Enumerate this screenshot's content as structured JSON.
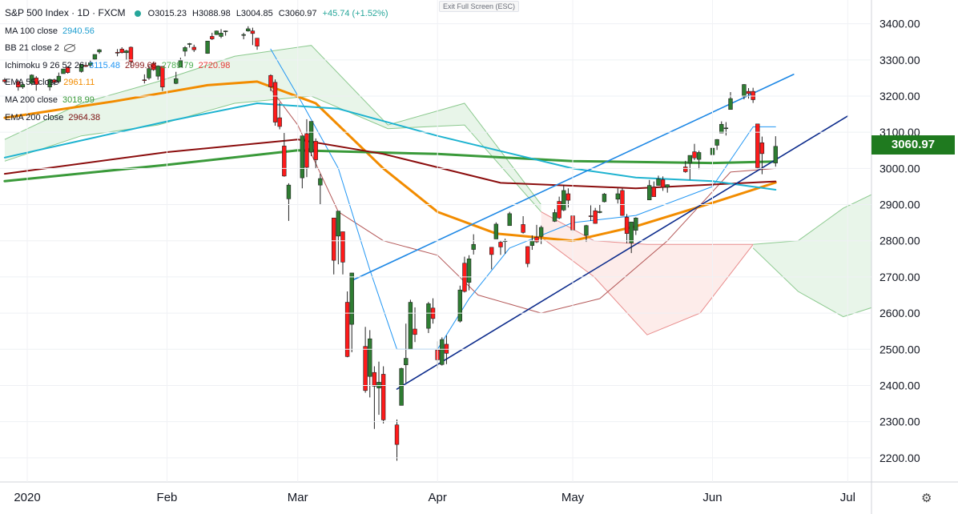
{
  "header": {
    "title": "S&P 500 Index · 1D · FXCM",
    "ohlc": {
      "open": "O3015.23",
      "high": "H3088.98",
      "low": "L3004.85",
      "close": "C3060.97",
      "change": "+45.74 (+1.52%)"
    },
    "exit_fullscreen": "Exit Full Screen (ESC)"
  },
  "indicators": [
    {
      "label": "MA 100 close",
      "values": [
        "2940.56"
      ],
      "colors": [
        "#1e9ed0"
      ]
    },
    {
      "label": "BB 21 close 2",
      "values": [],
      "colors": []
    },
    {
      "label": "Ichimoku 9 26 52 26",
      "values": [
        "3115.48",
        "2999.68",
        "2789.79",
        "2720.98"
      ],
      "colors": [
        "#2196f3",
        "#8a1b1b",
        "#4caf50",
        "#e53935"
      ]
    },
    {
      "label": "EMA 55 close",
      "values": [
        "2961.11"
      ],
      "colors": [
        "#f28c00"
      ]
    },
    {
      "label": "MA 200 close",
      "values": [
        "3018.99"
      ],
      "colors": [
        "#3a9a3a"
      ]
    },
    {
      "label": "EMA 200 close",
      "values": [
        "2964.38"
      ],
      "colors": [
        "#7a1010"
      ]
    }
  ],
  "last_price": "3060.97",
  "colors": {
    "up": "#2e7d32",
    "down": "#ff1a1a",
    "ema55": "#f28c00",
    "ma200": "#3a9a3a",
    "ema200": "#8b0d0d",
    "ma100": "#1eb3d0",
    "trend_upper": "#1e88e5",
    "trend_lower": "#0d2c8c",
    "tenkan": "#2196f3",
    "kijun": "#8a1b1b",
    "cloud_bull": "#e8f5e9",
    "cloud_bear": "#fdecea",
    "price_tag": "#1f7a1f"
  },
  "chart_data": {
    "type": "candlestick",
    "title": "S&P 500 Index · 1D · FXCM",
    "y_axis": {
      "range": [
        2120,
        3470
      ],
      "ticks": [
        2200,
        2300,
        2400,
        2500,
        2600,
        2700,
        2800,
        2900,
        3000,
        3100,
        3200,
        3300,
        3400
      ]
    },
    "x_axis": {
      "range": [
        "2020-01-01",
        "2020-07-10"
      ],
      "labels": [
        {
          "label": "2020",
          "date": "2020-01-01"
        },
        {
          "label": "Feb",
          "date": "2020-02-01"
        },
        {
          "label": "Mar",
          "date": "2020-03-01"
        },
        {
          "label": "Apr",
          "date": "2020-04-01"
        },
        {
          "label": "May",
          "date": "2020-05-01"
        },
        {
          "label": "Jun",
          "date": "2020-06-01"
        },
        {
          "label": "Jul",
          "date": "2020-07-01"
        }
      ]
    },
    "candles": [
      [
        "2019-12-27",
        3245,
        3250,
        3235,
        3240
      ],
      [
        "2019-12-30",
        3240,
        3245,
        3215,
        3225
      ],
      [
        "2019-12-31",
        3225,
        3235,
        3220,
        3232
      ],
      [
        "2020-01-02",
        3235,
        3260,
        3230,
        3258
      ],
      [
        "2020-01-03",
        3250,
        3255,
        3215,
        3232
      ],
      [
        "2020-01-06",
        3225,
        3248,
        3215,
        3246
      ],
      [
        "2020-01-07",
        3245,
        3248,
        3230,
        3238
      ],
      [
        "2020-01-08",
        3240,
        3265,
        3235,
        3255
      ],
      [
        "2020-01-09",
        3262,
        3275,
        3262,
        3275
      ],
      [
        "2020-01-10",
        3280,
        3282,
        3262,
        3265
      ],
      [
        "2020-01-13",
        3268,
        3288,
        3265,
        3288
      ],
      [
        "2020-01-14",
        3285,
        3294,
        3280,
        3282
      ],
      [
        "2020-01-15",
        3285,
        3298,
        3280,
        3292
      ],
      [
        "2020-01-16",
        3302,
        3315,
        3300,
        3315
      ],
      [
        "2020-01-17",
        3322,
        3330,
        3317,
        3328
      ],
      [
        "2020-01-21",
        3321,
        3330,
        3310,
        3320
      ],
      [
        "2020-01-22",
        3330,
        3335,
        3318,
        3320
      ],
      [
        "2020-01-23",
        3320,
        3328,
        3300,
        3325
      ],
      [
        "2020-01-24",
        3335,
        3337,
        3280,
        3295
      ],
      [
        "2020-01-27",
        3245,
        3260,
        3235,
        3243
      ],
      [
        "2020-01-28",
        3250,
        3285,
        3245,
        3276
      ],
      [
        "2020-01-29",
        3290,
        3295,
        3270,
        3273
      ],
      [
        "2020-01-30",
        3255,
        3285,
        3245,
        3283
      ],
      [
        "2020-01-31",
        3282,
        3283,
        3214,
        3225
      ],
      [
        "2020-02-03",
        3235,
        3267,
        3233,
        3248
      ],
      [
        "2020-02-04",
        3280,
        3306,
        3280,
        3298
      ],
      [
        "2020-02-05",
        3324,
        3338,
        3310,
        3334
      ],
      [
        "2020-02-06",
        3344,
        3347,
        3334,
        3345
      ],
      [
        "2020-02-07",
        3335,
        3342,
        3322,
        3328
      ],
      [
        "2020-02-10",
        3318,
        3352,
        3317,
        3352
      ],
      [
        "2020-02-11",
        3365,
        3375,
        3355,
        3358
      ],
      [
        "2020-02-12",
        3370,
        3381,
        3369,
        3380
      ],
      [
        "2020-02-13",
        3365,
        3385,
        3360,
        3374
      ],
      [
        "2020-02-14",
        3378,
        3381,
        3367,
        3380
      ],
      [
        "2020-02-18",
        3370,
        3375,
        3357,
        3370
      ],
      [
        "2020-02-19",
        3380,
        3393,
        3378,
        3386
      ],
      [
        "2020-02-20",
        3380,
        3389,
        3341,
        3373
      ],
      [
        "2020-02-21",
        3360,
        3360,
        3328,
        3338
      ],
      [
        "2020-02-24",
        3257,
        3260,
        3214,
        3225
      ],
      [
        "2020-02-25",
        3238,
        3246,
        3118,
        3128
      ],
      [
        "2020-02-26",
        3140,
        3182,
        3108,
        3116
      ],
      [
        "2020-02-27",
        3062,
        3098,
        2977,
        2979
      ],
      [
        "2020-02-28",
        2916,
        2959,
        2855,
        2954
      ],
      [
        "2020-03-02",
        2974,
        3090,
        2945,
        3090
      ],
      [
        "2020-03-03",
        3096,
        3136,
        2976,
        3003
      ],
      [
        "2020-03-04",
        3045,
        3130,
        3034,
        3130
      ],
      [
        "2020-03-05",
        3075,
        3083,
        2999,
        3024
      ],
      [
        "2020-03-06",
        2954,
        2985,
        2901,
        2972
      ],
      [
        "2020-03-09",
        2863,
        2863,
        2707,
        2746
      ],
      [
        "2020-03-10",
        2813,
        2882,
        2735,
        2882
      ],
      [
        "2020-03-11",
        2825,
        2825,
        2707,
        2741
      ],
      [
        "2020-03-12",
        2630,
        2660,
        2478,
        2480
      ],
      [
        "2020-03-13",
        2569,
        2711,
        2492,
        2711
      ],
      [
        "2020-03-16",
        2508,
        2562,
        2380,
        2386
      ],
      [
        "2020-03-17",
        2425,
        2553,
        2367,
        2529
      ],
      [
        "2020-03-18",
        2436,
        2453,
        2280,
        2398
      ],
      [
        "2020-03-19",
        2393,
        2466,
        2319,
        2409
      ],
      [
        "2020-03-20",
        2431,
        2453,
        2295,
        2305
      ],
      [
        "2020-03-23",
        2291,
        2306,
        2192,
        2237
      ],
      [
        "2020-03-24",
        2345,
        2449,
        2345,
        2447
      ],
      [
        "2020-03-25",
        2457,
        2571,
        2407,
        2475
      ],
      [
        "2020-03-26",
        2501,
        2637,
        2500,
        2630
      ],
      [
        "2020-03-27",
        2556,
        2616,
        2520,
        2541
      ],
      [
        "2020-03-30",
        2558,
        2631,
        2545,
        2626
      ],
      [
        "2020-03-31",
        2614,
        2641,
        2571,
        2585
      ],
      [
        "2020-04-01",
        2498,
        2522,
        2447,
        2471
      ],
      [
        "2020-04-02",
        2458,
        2533,
        2455,
        2527
      ],
      [
        "2020-04-03",
        2514,
        2538,
        2459,
        2489
      ],
      [
        "2020-04-06",
        2578,
        2676,
        2574,
        2664
      ],
      [
        "2020-04-07",
        2738,
        2756,
        2657,
        2660
      ],
      [
        "2020-04-08",
        2685,
        2760,
        2663,
        2750
      ],
      [
        "2020-04-09",
        2776,
        2818,
        2762,
        2790
      ],
      [
        "2020-04-13",
        2782,
        2782,
        2721,
        2762
      ],
      [
        "2020-04-14",
        2805,
        2851,
        2805,
        2846
      ],
      [
        "2020-04-15",
        2796,
        2801,
        2761,
        2783
      ],
      [
        "2020-04-16",
        2800,
        2806,
        2764,
        2800
      ],
      [
        "2020-04-17",
        2842,
        2880,
        2842,
        2875
      ],
      [
        "2020-04-20",
        2845,
        2868,
        2820,
        2823
      ],
      [
        "2020-04-21",
        2784,
        2785,
        2727,
        2737
      ],
      [
        "2020-04-22",
        2787,
        2815,
        2775,
        2799
      ],
      [
        "2020-04-23",
        2810,
        2844,
        2794,
        2797
      ],
      [
        "2020-04-24",
        2812,
        2842,
        2791,
        2837
      ],
      [
        "2020-04-27",
        2854,
        2887,
        2852,
        2878
      ],
      [
        "2020-04-28",
        2909,
        2922,
        2860,
        2863
      ],
      [
        "2020-04-29",
        2885,
        2954,
        2882,
        2939
      ],
      [
        "2020-04-30",
        2930,
        2945,
        2892,
        2912
      ],
      [
        "2020-05-01",
        2869,
        2869,
        2821,
        2830
      ],
      [
        "2020-05-04",
        2815,
        2844,
        2797,
        2842
      ],
      [
        "2020-05-05",
        2869,
        2898,
        2855,
        2868
      ],
      [
        "2020-05-06",
        2883,
        2891,
        2847,
        2848
      ],
      [
        "2020-05-07",
        2878,
        2901,
        2876,
        2881
      ],
      [
        "2020-05-08",
        2908,
        2932,
        2906,
        2929
      ],
      [
        "2020-05-11",
        2915,
        2945,
        2903,
        2930
      ],
      [
        "2020-05-12",
        2939,
        2945,
        2869,
        2870
      ],
      [
        "2020-05-13",
        2865,
        2874,
        2793,
        2820
      ],
      [
        "2020-05-14",
        2794,
        2852,
        2766,
        2852
      ],
      [
        "2020-05-15",
        2829,
        2865,
        2816,
        2863
      ],
      [
        "2020-05-18",
        2913,
        2968,
        2913,
        2953
      ],
      [
        "2020-05-19",
        2948,
        2964,
        2922,
        2922
      ],
      [
        "2020-05-20",
        2953,
        2980,
        2953,
        2971
      ],
      [
        "2020-05-21",
        2969,
        2978,
        2938,
        2948
      ],
      [
        "2020-05-22",
        2948,
        2956,
        2933,
        2955
      ],
      [
        "2020-05-26",
        3004,
        3021,
        2988,
        2991
      ],
      [
        "2020-05-27",
        3015,
        3036,
        2969,
        3036
      ],
      [
        "2020-05-28",
        3046,
        3068,
        3023,
        3029
      ],
      [
        "2020-05-29",
        3025,
        3049,
        2998,
        3044
      ],
      [
        "2020-06-01",
        3038,
        3063,
        3031,
        3056
      ],
      [
        "2020-06-02",
        3064,
        3081,
        3051,
        3080
      ],
      [
        "2020-06-03",
        3098,
        3130,
        3098,
        3122
      ],
      [
        "2020-06-04",
        3111,
        3128,
        3091,
        3112
      ],
      [
        "2020-06-05",
        3163,
        3211,
        3163,
        3193
      ],
      [
        "2020-06-08",
        3199,
        3233,
        3191,
        3232
      ],
      [
        "2020-06-09",
        3213,
        3222,
        3193,
        3207
      ],
      [
        "2020-06-10",
        3213,
        3223,
        3181,
        3190
      ],
      [
        "2020-06-11",
        3123,
        3123,
        2999,
        3002
      ],
      [
        "2020-06-12",
        3071,
        3088,
        2984,
        3041
      ],
      [
        "2020-06-15",
        3015,
        3089,
        3005,
        3061
      ]
    ],
    "overlays": [
      {
        "name": "EMA 55 close",
        "points": [
          [
            "2019-12-27",
            3140
          ],
          [
            "2020-01-20",
            3185
          ],
          [
            "2020-02-10",
            3230
          ],
          [
            "2020-02-21",
            3240
          ],
          [
            "2020-03-05",
            3180
          ],
          [
            "2020-03-20",
            3000
          ],
          [
            "2020-04-01",
            2880
          ],
          [
            "2020-04-14",
            2820
          ],
          [
            "2020-05-01",
            2800
          ],
          [
            "2020-05-15",
            2840
          ],
          [
            "2020-06-01",
            2905
          ],
          [
            "2020-06-15",
            2961
          ]
        ]
      },
      {
        "name": "MA 200 close",
        "points": [
          [
            "2019-12-27",
            2965
          ],
          [
            "2020-02-01",
            3010
          ],
          [
            "2020-03-01",
            3050
          ],
          [
            "2020-04-01",
            3040
          ],
          [
            "2020-05-01",
            3020
          ],
          [
            "2020-06-01",
            3015
          ],
          [
            "2020-06-15",
            3019
          ]
        ]
      },
      {
        "name": "EMA 200 close",
        "points": [
          [
            "2019-12-27",
            2985
          ],
          [
            "2020-02-01",
            3045
          ],
          [
            "2020-03-01",
            3080
          ],
          [
            "2020-03-20",
            3040
          ],
          [
            "2020-04-15",
            2960
          ],
          [
            "2020-05-15",
            2945
          ],
          [
            "2020-06-15",
            2964
          ]
        ]
      },
      {
        "name": "MA 100 close",
        "points": [
          [
            "2019-12-27",
            3030
          ],
          [
            "2020-02-01",
            3130
          ],
          [
            "2020-02-21",
            3180
          ],
          [
            "2020-03-10",
            3165
          ],
          [
            "2020-04-01",
            3090
          ],
          [
            "2020-05-01",
            3000
          ],
          [
            "2020-05-15",
            2975
          ],
          [
            "2020-06-01",
            2965
          ],
          [
            "2020-06-15",
            2941
          ]
        ]
      }
    ],
    "trendlines": [
      {
        "name": "upper channel",
        "points": [
          [
            "2020-03-13",
            2690
          ],
          [
            "2020-06-19",
            3260
          ]
        ]
      },
      {
        "name": "lower channel",
        "points": [
          [
            "2020-03-23",
            2390
          ],
          [
            "2020-07-01",
            3145
          ]
        ]
      }
    ],
    "ichimoku": {
      "tenkan": [
        [
          "2020-02-24",
          3330
        ],
        [
          "2020-03-02",
          3180
        ],
        [
          "2020-03-10",
          3000
        ],
        [
          "2020-03-17",
          2720
        ],
        [
          "2020-03-23",
          2500
        ],
        [
          "2020-04-01",
          2500
        ],
        [
          "2020-04-08",
          2640
        ],
        [
          "2020-04-17",
          2780
        ],
        [
          "2020-05-01",
          2850
        ],
        [
          "2020-05-15",
          2870
        ],
        [
          "2020-06-01",
          2950
        ],
        [
          "2020-06-10",
          3115
        ],
        [
          "2020-06-15",
          3115
        ]
      ],
      "kijun": [
        [
          "2020-02-24",
          3220
        ],
        [
          "2020-03-01",
          3120
        ],
        [
          "2020-03-10",
          2880
        ],
        [
          "2020-03-20",
          2800
        ],
        [
          "2020-04-01",
          2760
        ],
        [
          "2020-04-10",
          2650
        ],
        [
          "2020-04-24",
          2600
        ],
        [
          "2020-05-07",
          2640
        ],
        [
          "2020-05-22",
          2800
        ],
        [
          "2020-06-05",
          2990
        ],
        [
          "2020-06-15",
          3000
        ]
      ],
      "cloud": [
        {
          "from": "2019-12-27",
          "to": "2020-04-24",
          "top": [
            3080,
            3180,
            3240,
            3310,
            3340,
            3120,
            3180,
            2900
          ],
          "bottom": [
            3020,
            3090,
            3120,
            3180,
            3200,
            3110,
            3120,
            2880
          ],
          "kind": "bull"
        },
        {
          "from": "2020-04-24",
          "to": "2020-06-10",
          "top": [
            2880,
            2800,
            2790,
            2790,
            2790
          ],
          "bottom": [
            2810,
            2700,
            2540,
            2600,
            2790
          ],
          "kind": "bear"
        },
        {
          "from": "2020-06-10",
          "to": "2020-07-10",
          "top": [
            2790,
            2800,
            2890,
            2950
          ],
          "bottom": [
            2780,
            2660,
            2590,
            2630
          ],
          "kind": "bull"
        }
      ]
    }
  }
}
